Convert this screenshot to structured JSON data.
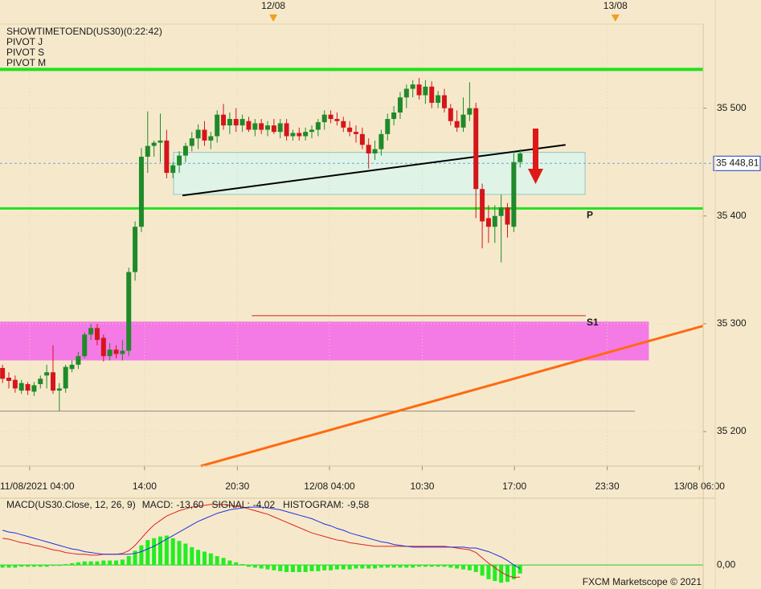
{
  "chart_data": [
    {
      "type": "candlestick",
      "indicators": [
        "SHOWTIMETOEND(US30)(0:22:42)",
        "PIVOT J",
        "PIVOT S",
        "PIVOT M"
      ],
      "x": [
        0,
        1,
        2,
        3,
        4,
        5,
        6,
        7,
        8,
        9,
        10,
        11,
        12,
        13,
        14,
        15,
        16,
        17,
        18,
        19,
        20,
        21,
        22,
        23,
        24,
        25,
        26,
        27,
        28,
        29,
        30,
        31,
        32,
        33,
        34,
        35,
        36,
        37,
        38,
        39,
        40,
        41,
        42,
        43,
        44,
        45,
        46,
        47,
        48,
        49,
        50,
        51,
        52,
        53,
        54,
        55,
        56,
        57,
        58,
        59,
        60,
        61,
        62,
        63,
        64,
        65,
        66,
        67,
        68,
        69,
        70,
        71,
        72,
        73,
        74,
        75,
        76,
        77,
        78,
        79,
        80,
        81,
        82
      ],
      "open": [
        35259,
        35250,
        35248,
        35238,
        35244,
        35237,
        35244,
        35252,
        35255,
        35238,
        35240,
        35258,
        35262,
        35270,
        35290,
        35296,
        35287,
        35270,
        35276,
        35272,
        35275,
        35348,
        35390,
        35455,
        35465,
        35468,
        35470,
        35440,
        35447,
        35456,
        35465,
        35472,
        35480,
        35470,
        35474,
        35494,
        35484,
        35490,
        35484,
        35488,
        35480,
        35486,
        35480,
        35484,
        35478,
        35486,
        35474,
        35477,
        35474,
        35478,
        35480,
        35487,
        35494,
        35490,
        35488,
        35482,
        35478,
        35476,
        35466,
        35458,
        35462,
        35476,
        35490,
        35496,
        35510,
        35518,
        35522,
        35512,
        35520,
        35505,
        35512,
        35500,
        35488,
        35482,
        35494,
        35500,
        35425,
        35398,
        35390,
        35400,
        35408,
        35390,
        35450
      ],
      "high": [
        35262,
        35255,
        35252,
        35248,
        35246,
        35246,
        35252,
        35262,
        35280,
        35245,
        35262,
        35266,
        35274,
        35292,
        35300,
        35300,
        35290,
        35282,
        35280,
        35285,
        35352,
        35395,
        35463,
        35497,
        35470,
        35495,
        35480,
        35450,
        35460,
        35468,
        35478,
        35485,
        35488,
        35478,
        35498,
        35504,
        35496,
        35500,
        35494,
        35492,
        35490,
        35490,
        35488,
        35490,
        35490,
        35490,
        35480,
        35482,
        35482,
        35484,
        35490,
        35498,
        35498,
        35496,
        35492,
        35488,
        35484,
        35482,
        35472,
        35470,
        35480,
        35495,
        35502,
        35515,
        35522,
        35526,
        35528,
        35526,
        35525,
        35516,
        35518,
        35504,
        35498,
        35510,
        35524,
        35505,
        35430,
        35410,
        35410,
        35420,
        35412,
        35460,
        35462
      ],
      "low": [
        35245,
        35240,
        35236,
        35235,
        35234,
        35233,
        35240,
        35240,
        35235,
        35219,
        35236,
        35255,
        35258,
        35268,
        35285,
        35280,
        35265,
        35266,
        35268,
        35266,
        35270,
        35340,
        35385,
        35440,
        35455,
        35450,
        35435,
        35435,
        35440,
        35450,
        35460,
        35462,
        35465,
        35462,
        35468,
        35480,
        35476,
        35478,
        35478,
        35478,
        35474,
        35476,
        35474,
        35476,
        35472,
        35470,
        35470,
        35470,
        35470,
        35472,
        35474,
        35480,
        35486,
        35484,
        35478,
        35474,
        35468,
        35462,
        35444,
        35452,
        35456,
        35470,
        35484,
        35490,
        35500,
        35510,
        35508,
        35504,
        35500,
        35500,
        35496,
        35484,
        35478,
        35478,
        35488,
        35398,
        35370,
        35375,
        35375,
        35357,
        35380,
        35385,
        35445
      ],
      "close": [
        35249,
        35247,
        35240,
        35245,
        35238,
        35243,
        35249,
        35255,
        35238,
        35240,
        35260,
        35262,
        35270,
        35290,
        35296,
        35285,
        35270,
        35276,
        35272,
        35275,
        35348,
        35390,
        35455,
        35465,
        35468,
        35470,
        35440,
        35447,
        35456,
        35465,
        35472,
        35480,
        35470,
        35474,
        35494,
        35484,
        35490,
        35484,
        35490,
        35480,
        35486,
        35480,
        35484,
        35478,
        35486,
        35474,
        35477,
        35474,
        35478,
        35480,
        35487,
        35494,
        35490,
        35488,
        35482,
        35478,
        35476,
        35466,
        35458,
        35462,
        35476,
        35490,
        35496,
        35510,
        35518,
        35522,
        35512,
        35520,
        35505,
        35512,
        35500,
        35488,
        35482,
        35494,
        35500,
        35425,
        35395,
        35390,
        35400,
        35408,
        35392,
        35450,
        35458
      ],
      "up_color": "#1f8a2a",
      "down_color": "#d4161b",
      "xlim": [
        -0.4,
        111
      ],
      "xticks": [
        {
          "value": 4.3,
          "label": "11/08/2021 04:00"
        },
        {
          "value": 22.5,
          "label": "14:00"
        },
        {
          "value": 37.2,
          "label": "20:30"
        },
        {
          "value": 51.8,
          "label": "12/08 04:00"
        },
        {
          "value": 66.5,
          "label": "10:30"
        },
        {
          "value": 81.1,
          "label": "17:00"
        },
        {
          "value": 95.8,
          "label": "23:30"
        },
        {
          "value": 110.4,
          "label": "13/08 06:00"
        }
      ],
      "x2ticks": [
        {
          "value": 42.9,
          "label": "12/08"
        },
        {
          "value": 97.1,
          "label": "13/08"
        }
      ],
      "ylim": [
        35168,
        35578
      ],
      "yticks": [
        {
          "value": 35200,
          "label": "35 200"
        },
        {
          "value": 35300,
          "label": "35 300"
        },
        {
          "value": 35400,
          "label": "35 400"
        },
        {
          "value": 35500,
          "label": "35 500"
        }
      ],
      "grid": true,
      "zones": [
        {
          "x": [
            -0.4,
            102.4
          ],
          "y": [
            35266,
            35302
          ],
          "color": "#f47ae6"
        },
        {
          "x": [
            27.1,
            92.3
          ],
          "y": [
            35420,
            35459
          ],
          "color": "#dff3e6",
          "border": "#8fc8c0"
        }
      ],
      "lines": [
        {
          "x": [
            -0.4,
            111
          ],
          "y": [
            35536,
            35536
          ],
          "color": "#22e01e",
          "width": 4
        },
        {
          "x": [
            -0.4,
            111
          ],
          "y": [
            35407,
            35407
          ],
          "color": "#22e01e",
          "width": 3,
          "label": "P"
        },
        {
          "x": [
            39.5,
            92.4
          ],
          "y": [
            35307.5,
            35307.5
          ],
          "color": "#cc2222",
          "width": 1,
          "label": "S1"
        },
        {
          "x": [
            -0.4,
            100.2
          ],
          "y": [
            35219,
            35219
          ],
          "color": "#8a8a8a",
          "width": 1
        },
        {
          "x": [
            28.5,
            89.2
          ],
          "y": [
            35419,
            35466
          ],
          "color": "#000000",
          "width": 2
        },
        {
          "x": [
            31.4,
            111
          ],
          "y": [
            35168,
            35298
          ],
          "color": "#ff6a10",
          "width": 3
        }
      ],
      "last_price": {
        "value": 35448.81,
        "label": "35 448,81"
      }
    },
    {
      "type": "macd",
      "title": "MACD(US30.Close, 12, 26, 9)",
      "series": [
        {
          "name": "MACD:",
          "last_label": "-13,60",
          "color": "#e02020",
          "kind": "line",
          "values": [
            30,
            29,
            27,
            25,
            24,
            22,
            21,
            19,
            17,
            16,
            14,
            13,
            12,
            12,
            11,
            11,
            12,
            12,
            12,
            13,
            16,
            22,
            30,
            38,
            45,
            50,
            55,
            58,
            61,
            63,
            65,
            66,
            67,
            68,
            68,
            68,
            67,
            66,
            65,
            63,
            61,
            59,
            57,
            54,
            51,
            48,
            45,
            42,
            39,
            36,
            34,
            32,
            30,
            28,
            27,
            25,
            24,
            23,
            22,
            21,
            21,
            21,
            21,
            21,
            21,
            21,
            21,
            21,
            21,
            21,
            21,
            20,
            19,
            18,
            17,
            14,
            8,
            2,
            -3,
            -8,
            -12,
            -14,
            -13.6
          ]
        },
        {
          "name": "SIGNAL:",
          "last_label": "-4,02",
          "color": "#2030e0",
          "kind": "line",
          "values": [
            39,
            37,
            36,
            34,
            32,
            30,
            28,
            26,
            24,
            22,
            20,
            18,
            17,
            15,
            14,
            13,
            12,
            12,
            12,
            12,
            12,
            13,
            15,
            18,
            21,
            25,
            29,
            33,
            37,
            41,
            45,
            49,
            52,
            55,
            58,
            60,
            62,
            63,
            64,
            65,
            65,
            65,
            64,
            63,
            62,
            60,
            58,
            56,
            54,
            52,
            49,
            46,
            44,
            41,
            39,
            36,
            34,
            32,
            30,
            28,
            26,
            25,
            23,
            22,
            21,
            20,
            20,
            20,
            20,
            20,
            20,
            20,
            20,
            20,
            19,
            19,
            17,
            15,
            12,
            9,
            5,
            0,
            -4.02
          ]
        },
        {
          "name": "HISTOGRAM:",
          "last_label": "-9,58",
          "color": "#22ee22",
          "kind": "bar",
          "values": [
            -3,
            -3,
            -3,
            -2,
            -2,
            -2,
            -2,
            -2,
            -1,
            -1,
            1,
            2,
            3,
            4,
            4,
            4,
            5,
            5,
            5,
            6,
            10,
            16,
            22,
            28,
            30,
            32,
            33,
            30,
            27,
            24,
            20,
            17,
            15,
            13,
            10,
            8,
            5,
            3,
            1,
            -2,
            -3,
            -4,
            -5,
            -6,
            -7,
            -8,
            -8,
            -8,
            -8,
            -7,
            -7,
            -6,
            -6,
            -5,
            -5,
            -5,
            -4,
            -4,
            -4,
            -4,
            -3,
            -3,
            -3,
            -3,
            -3,
            -3,
            -2,
            -2,
            -2,
            -2,
            -2,
            -3,
            -4,
            -5,
            -6,
            -8,
            -12,
            -16,
            -18,
            -20,
            -19,
            -16,
            -9.58
          ]
        }
      ],
      "ylim": [
        -27,
        75
      ],
      "yticks": [
        {
          "value": 0,
          "label": "0,00"
        }
      ],
      "watermark": "FXCM Marketscope © 2021"
    }
  ]
}
